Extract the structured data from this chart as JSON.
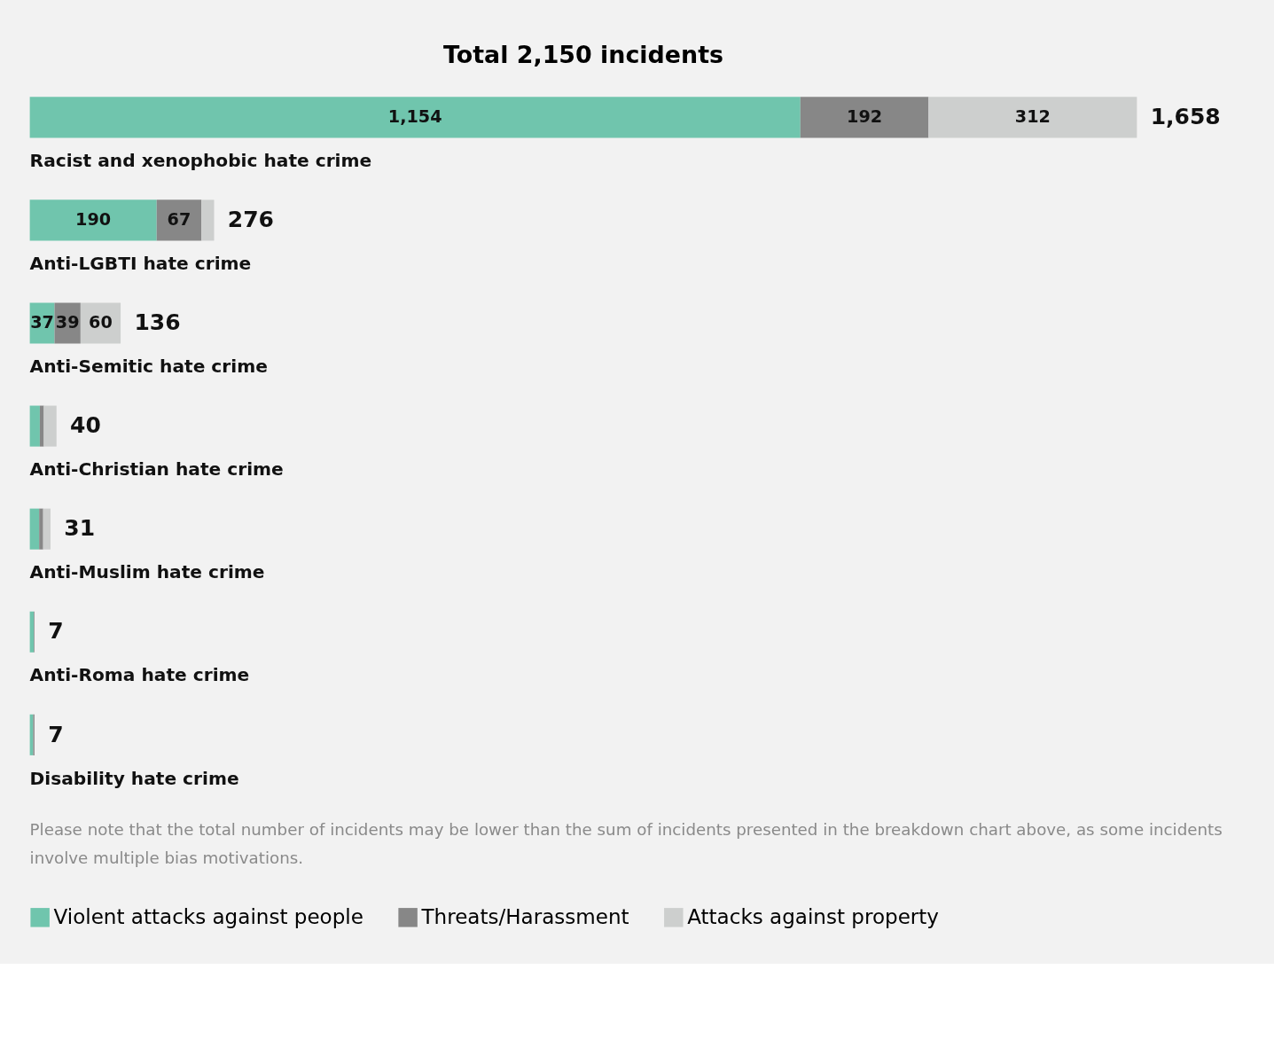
{
  "chart_data": {
    "type": "bar",
    "orientation": "horizontal",
    "stacked": true,
    "title": "Total 2,150 incidents",
    "categories": [
      "Racist and xenophobic hate crime",
      "Anti-LGBTI hate crime",
      "Anti-Semitic hate crime",
      "Anti-Christian hate crime",
      "Anti-Muslim hate crime",
      "Anti-Roma hate crime",
      "Disability hate crime"
    ],
    "series": [
      {
        "name": "Violent attacks against people",
        "color": "#70c5ad",
        "values": [
          1154,
          190,
          37,
          15,
          14,
          6,
          5
        ],
        "value_labels": [
          "1,154",
          "190",
          "37",
          null,
          null,
          null,
          null
        ]
      },
      {
        "name": "Threats/Harassment",
        "color": "#878787",
        "values": [
          192,
          67,
          39,
          6,
          6,
          1,
          2
        ],
        "value_labels": [
          "192",
          "67",
          "39",
          null,
          null,
          null,
          null
        ]
      },
      {
        "name": "Attacks against property",
        "color": "#cdcfce",
        "values": [
          312,
          19,
          60,
          19,
          11,
          0,
          0
        ],
        "value_labels": [
          "312",
          null,
          "60",
          null,
          null,
          null,
          null
        ]
      }
    ],
    "totals": [
      "1,658",
      "276",
      "136",
      "40",
      "31",
      "7",
      "7"
    ],
    "legend": "bottom",
    "annotations": [
      "Please note that the total number of incidents may be lower than the sum of incidents presented in the breakdown chart above, as some incidents involve multiple bias motivations."
    ]
  }
}
